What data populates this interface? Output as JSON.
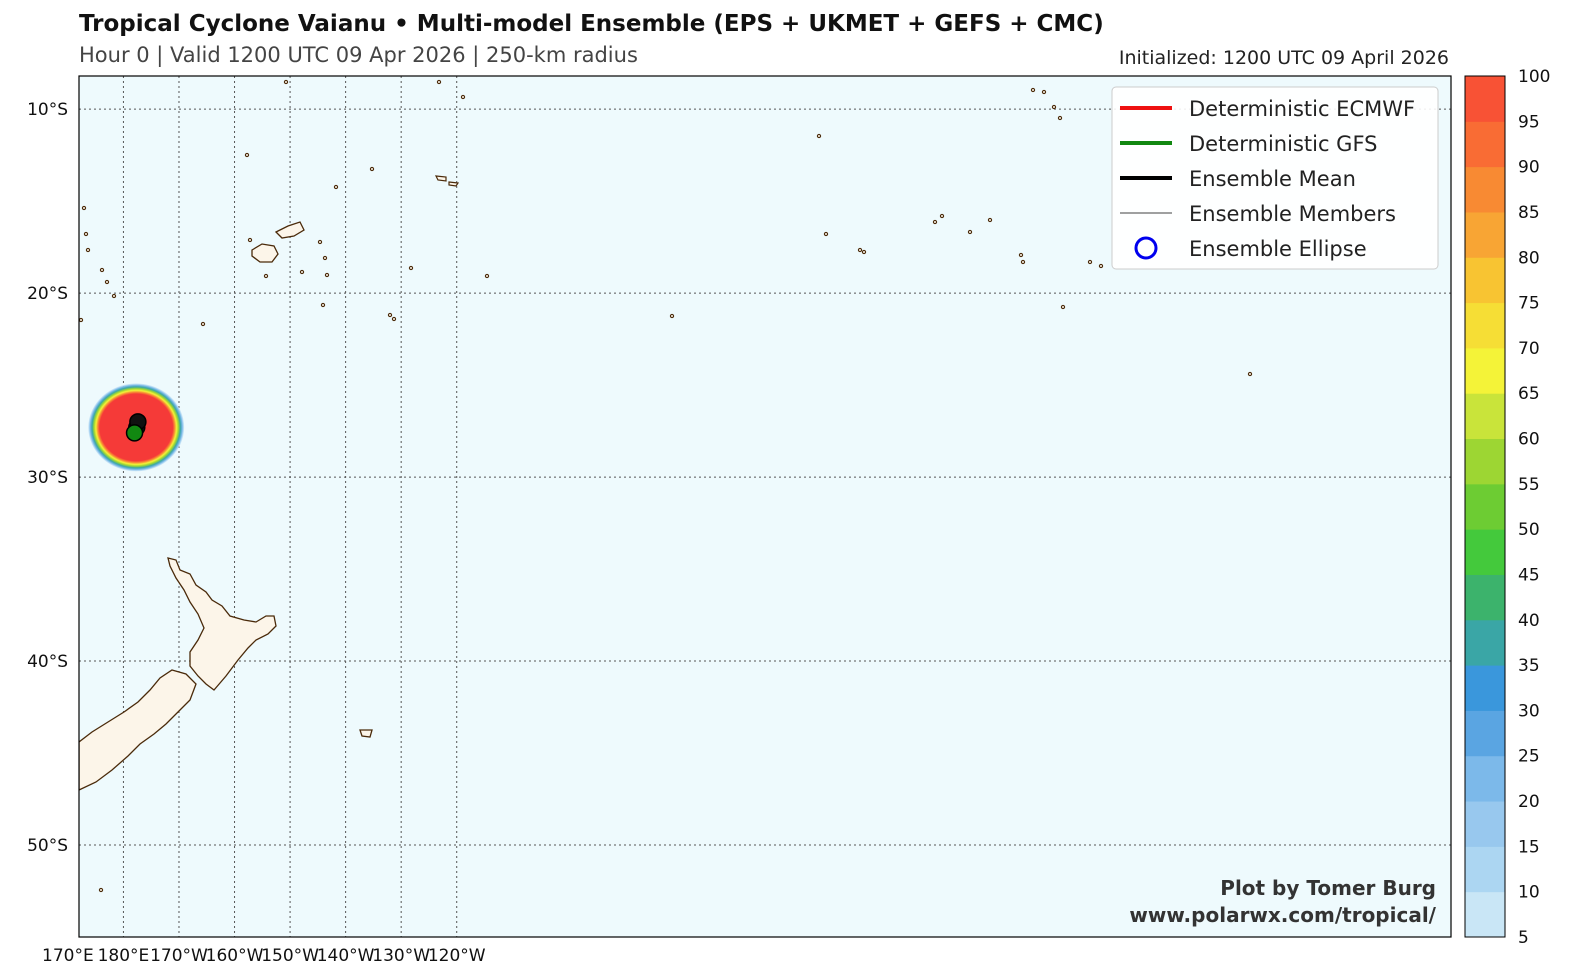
{
  "header": {
    "title": "Tropical Cyclone Vaianu • Multi-model Ensemble (EPS + UKMET + GEFS + CMC)",
    "subtitle": "Hour 0 | Valid 1200 UTC 09 Apr 2026 | 250-km radius",
    "initialized": "Initialized: 1200 UTC 09 April 2026"
  },
  "map": {
    "lon_range": [
      172,
      419
    ],
    "lat_range": [
      -55,
      -8.2
    ],
    "ocean_color": "#eefafd",
    "land_color": "#fcf5e9",
    "coast_color": "#4a2a0a",
    "lon_ticks": [
      {
        "value": 170,
        "label": "170°E"
      },
      {
        "value": 180,
        "label": "180°E"
      },
      {
        "value": 190,
        "label": "170°W"
      },
      {
        "value": 200,
        "label": "160°W"
      },
      {
        "value": 210,
        "label": "150°W"
      },
      {
        "value": 220,
        "label": "140°W"
      },
      {
        "value": 230,
        "label": "130°W"
      },
      {
        "value": 240,
        "label": "120°W"
      }
    ],
    "lat_ticks": [
      {
        "value": -10,
        "label": "10°S"
      },
      {
        "value": -20,
        "label": "20°S"
      },
      {
        "value": -30,
        "label": "30°S"
      },
      {
        "value": -40,
        "label": "40°S"
      },
      {
        "value": -50,
        "label": "50°S"
      }
    ]
  },
  "storm": {
    "center_lon": 182.3,
    "center_lat": -27.3,
    "strike_probability_max": 100,
    "ecmwf_lon": 182.6,
    "ecmwf_lat": -27.0,
    "gfs_lon": 182.0,
    "gfs_lat": -27.6,
    "mean_lon": 182.4,
    "mean_lat": -27.3
  },
  "legend": {
    "items": [
      {
        "label": "Deterministic ECMWF",
        "color": "#ee1111",
        "style": "thick"
      },
      {
        "label": "Deterministic GFS",
        "color": "#118811",
        "style": "thick"
      },
      {
        "label": "Ensemble Mean",
        "color": "#000000",
        "style": "thick"
      },
      {
        "label": "Ensemble Members",
        "color": "#000000",
        "style": "thin"
      },
      {
        "label": "Ensemble Ellipse",
        "color": "#0000ee",
        "style": "circle"
      }
    ]
  },
  "colorbar": {
    "levels": [
      5,
      10,
      15,
      20,
      25,
      30,
      35,
      40,
      45,
      50,
      55,
      60,
      65,
      70,
      75,
      80,
      85,
      90,
      95,
      100
    ],
    "colors": [
      "#c9e6f6",
      "#acd6f2",
      "#98c8ee",
      "#7cb9ea",
      "#5aa5e2",
      "#3a97dc",
      "#3aa6a6",
      "#3cb36c",
      "#44c93c",
      "#6dcc33",
      "#9dd633",
      "#c9e43a",
      "#f4f338",
      "#f6de35",
      "#f8c432",
      "#f8a534",
      "#f88a33",
      "#f96c34",
      "#f85235",
      "#f53a38"
    ]
  },
  "credit": {
    "line1": "Plot by Tomer Burg",
    "line2": "www.polarwx.com/tropical/"
  }
}
